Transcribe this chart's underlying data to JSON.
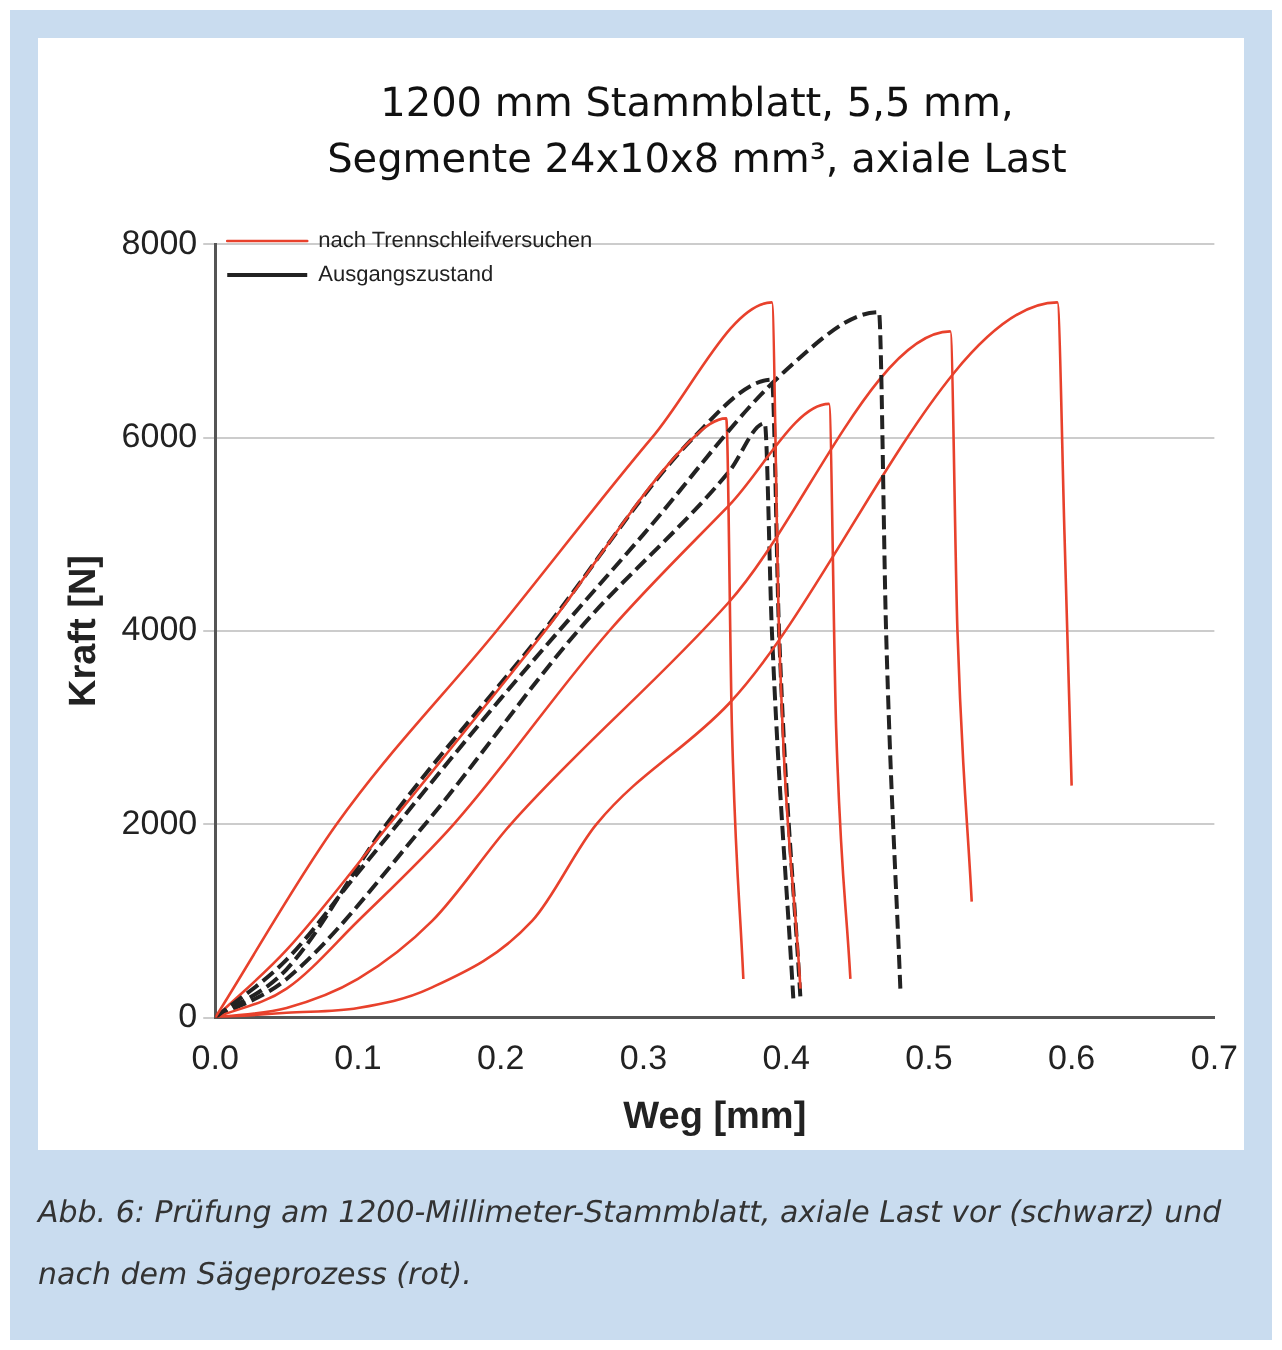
{
  "chart_data": {
    "type": "line",
    "title": "1200 mm Stammblatt, 5,5 mm, Segmente 24x10x8 mm³, axiale Last",
    "xlabel": "Weg [mm]",
    "ylabel": "Kraft [N]",
    "annotations": [
      "Abb. 6: Prüfung am 1200-Millimeter-Stammblatt, axiale Last vor (schwarz) und nach dem Sägeprozess (rot)."
    ],
    "xlim": [
      0,
      0.7
    ],
    "xticks": [
      {
        "value": 0,
        "label": "0.0"
      },
      0.1,
      0.2,
      0.3,
      0.4,
      0.5,
      0.6,
      0.7
    ],
    "ylim": [
      0,
      8000
    ],
    "yticks": [
      0,
      2000,
      4000,
      6000,
      8000
    ],
    "grid": "y",
    "legend": "top left",
    "marker": "none",
    "series": [
      {
        "name": "nach Trennschleifversuchen",
        "color": "#e8412c",
        "line_style": "solid",
        "x": [
          0,
          0.085,
          0.197,
          0.306,
          0.39,
          0.395,
          0.41
        ],
        "values": [
          0,
          2000,
          4000,
          6000,
          7400,
          4000,
          300
        ]
      },
      {
        "name": "Ausgangszustand",
        "color": "#222222",
        "line_style": "dashed",
        "x": [
          0,
          0.05,
          0.1,
          0.2,
          0.3,
          0.4,
          0.465,
          0.47,
          0.48
        ],
        "values": [
          0,
          600,
          1500,
          3300,
          5000,
          6700,
          7300,
          4000,
          300
        ]
      },
      {
        "color": "#e8412c",
        "line_style": "solid",
        "x": [
          0,
          0.05,
          0.122,
          0.231,
          0.335,
          0.358,
          0.362,
          0.37
        ],
        "values": [
          0,
          700,
          2000,
          4000,
          6000,
          6200,
          3000,
          400
        ]
      },
      {
        "color": "#e8412c",
        "line_style": "solid",
        "x": [
          0,
          0.05,
          0.1,
          0.167,
          0.276,
          0.36,
          0.43,
          0.435,
          0.445
        ],
        "values": [
          0,
          300,
          1000,
          2000,
          4000,
          5300,
          6350,
          3000,
          400
        ]
      },
      {
        "color": "#e8412c",
        "line_style": "solid",
        "x": [
          0,
          0.05,
          0.1,
          0.152,
          0.207,
          0.36,
          0.515,
          0.52,
          0.53
        ],
        "values": [
          0,
          100,
          400,
          1000,
          2000,
          4300,
          7100,
          4000,
          1200
        ]
      },
      {
        "color": "#e8412c",
        "line_style": "solid",
        "x": [
          0,
          0.05,
          0.1,
          0.15,
          0.222,
          0.267,
          0.36,
          0.59,
          0.595,
          0.6
        ],
        "values": [
          0,
          50,
          100,
          300,
          1000,
          2000,
          3250,
          7400,
          5000,
          2400
        ]
      },
      {
        "color": "#222222",
        "line_style": "dashed",
        "x": [
          0,
          0.05,
          0.12,
          0.23,
          0.335,
          0.39,
          0.395,
          0.41
        ],
        "values": [
          0,
          500,
          2000,
          4000,
          6000,
          6600,
          4000,
          200
        ]
      },
      {
        "color": "#222222",
        "line_style": "dashed",
        "x": [
          0,
          0.05,
          0.147,
          0.254,
          0.36,
          0.385,
          0.39,
          0.405
        ],
        "values": [
          0,
          400,
          2000,
          4000,
          5650,
          6150,
          4000,
          200
        ]
      }
    ]
  }
}
